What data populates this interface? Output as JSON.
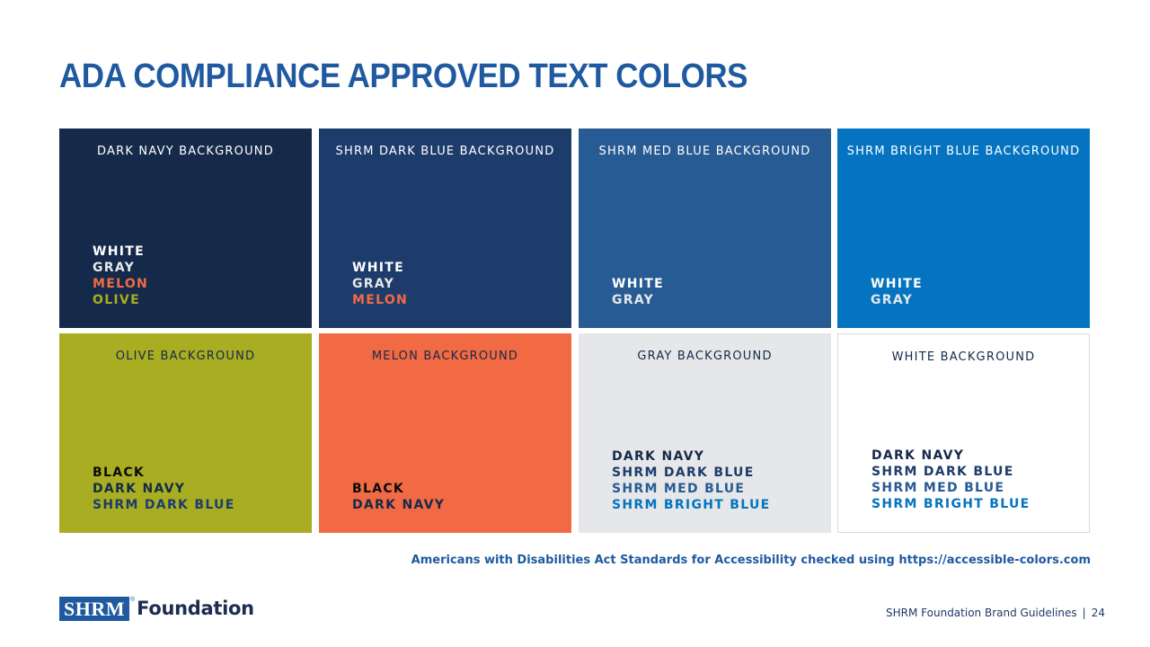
{
  "title": "ADA COMPLIANCE APPROVED TEXT COLORS",
  "cards": [
    {
      "label": "DARK NAVY BACKGROUND",
      "background": "#152a4a",
      "label_color": "#ffffff",
      "items": [
        {
          "text": "WHITE",
          "color": "#ffffff"
        },
        {
          "text": "GRAY",
          "color": "#e6e7e9"
        },
        {
          "text": "MELON",
          "color": "#f26a43"
        },
        {
          "text": "OLIVE",
          "color": "#a8ad22"
        }
      ]
    },
    {
      "label": "SHRM DARK BLUE BACKGROUND",
      "background": "#1d3c6b",
      "label_color": "#ffffff",
      "items": [
        {
          "text": "WHITE",
          "color": "#ffffff"
        },
        {
          "text": "GRAY",
          "color": "#e6e7e9"
        },
        {
          "text": "MELON",
          "color": "#f26a43"
        }
      ]
    },
    {
      "label": "SHRM MED BLUE BACKGROUND",
      "background": "#275b94",
      "label_color": "#ffffff",
      "items": [
        {
          "text": "WHITE",
          "color": "#ffffff"
        },
        {
          "text": "GRAY",
          "color": "#e6e7e9"
        }
      ]
    },
    {
      "label": "SHRM BRIGHT BLUE BACKGROUND",
      "background": "#0474c0",
      "label_color": "#ffffff",
      "items": [
        {
          "text": "WHITE",
          "color": "#ffffff"
        },
        {
          "text": "GRAY",
          "color": "#e6e7e9"
        }
      ]
    },
    {
      "label": "OLIVE BACKGROUND",
      "background": "#a8ad22",
      "label_color": "#152a4a",
      "items": [
        {
          "text": "BLACK",
          "color": "#0b0b0b"
        },
        {
          "text": "DARK NAVY",
          "color": "#152a4a"
        },
        {
          "text": "SHRM DARK BLUE",
          "color": "#1d3c6b"
        }
      ]
    },
    {
      "label": "MELON BACKGROUND",
      "background": "#f26a43",
      "label_color": "#152a4a",
      "items": [
        {
          "text": "BLACK",
          "color": "#0b0b0b"
        },
        {
          "text": "DARK NAVY",
          "color": "#152a4a"
        }
      ]
    },
    {
      "label": "GRAY BACKGROUND",
      "background": "#e6e7e9",
      "label_color": "#152a4a",
      "items": [
        {
          "text": "DARK NAVY",
          "color": "#152a4a"
        },
        {
          "text": "SHRM DARK BLUE",
          "color": "#1d3c6b"
        },
        {
          "text": "SHRM MED BLUE",
          "color": "#275b94"
        },
        {
          "text": "SHRM BRIGHT BLUE",
          "color": "#0474c0"
        }
      ]
    },
    {
      "label": "WHITE BACKGROUND",
      "background": "#ffffff",
      "label_color": "#152a4a",
      "bordered": true,
      "items": [
        {
          "text": "DARK NAVY",
          "color": "#152a4a"
        },
        {
          "text": "SHRM DARK BLUE",
          "color": "#1d3c6b"
        },
        {
          "text": "SHRM MED BLUE",
          "color": "#275b94"
        },
        {
          "text": "SHRM BRIGHT BLUE",
          "color": "#0474c0"
        }
      ]
    }
  ],
  "footnote": "Americans with Disabilities Act Standards for Accessibility checked using https://accessible-colors.com",
  "logo": {
    "mark": "SHRM",
    "registered": "®",
    "word": "Foundation"
  },
  "footer": {
    "text": "SHRM Foundation Brand Guidelines",
    "separator": "|",
    "page_number": "24"
  }
}
